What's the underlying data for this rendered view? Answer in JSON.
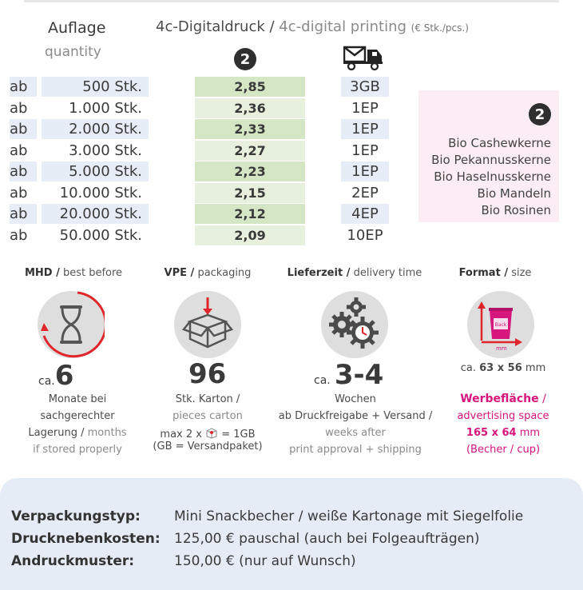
{
  "header": {
    "auflage": "Auflage",
    "quantity": "quantity",
    "title_de": "4c-Digitaldruck /",
    "title_en": "4c-digital printing",
    "title_unit": "(€ Stk./pcs.)",
    "badge": "2",
    "truck_icon": "mail-truck-icon"
  },
  "rows": [
    {
      "ab": "ab",
      "qty": "500 Stk.",
      "price": "2,85",
      "ship": "3GB"
    },
    {
      "ab": "ab",
      "qty": "1.000 Stk.",
      "price": "2,36",
      "ship": "1EP"
    },
    {
      "ab": "ab",
      "qty": "2.000 Stk.",
      "price": "2,33",
      "ship": "1EP"
    },
    {
      "ab": "ab",
      "qty": "3.000 Stk.",
      "price": "2,27",
      "ship": "1EP"
    },
    {
      "ab": "ab",
      "qty": "5.000 Stk.",
      "price": "2,23",
      "ship": "1EP"
    },
    {
      "ab": "ab",
      "qty": "10.000 Stk.",
      "price": "2,15",
      "ship": "2EP"
    },
    {
      "ab": "ab",
      "qty": "20.000 Stk.",
      "price": "2,12",
      "ship": "4EP"
    },
    {
      "ab": "ab",
      "qty": "50.000 Stk.",
      "price": "2,09",
      "ship": "10EP"
    }
  ],
  "side": {
    "badge": "2",
    "items": [
      "Bio Cashewkerne",
      "Bio Pekannusskerne",
      "Bio Haselnusskerne",
      "Bio Mandeln",
      "Bio Rosinen"
    ]
  },
  "mhd": {
    "label_de": "MHD /",
    "label_en": "best before",
    "ca": "ca.",
    "value": "6",
    "line1": "Monate bei",
    "line2": "sachgerechter",
    "line3a": "Lagerung /",
    "line3b": "months",
    "line4": "if stored properly"
  },
  "vpe": {
    "label_de": "VPE /",
    "label_en": "packaging",
    "value": "96",
    "line1": "Stk. Karton /",
    "line2": "pieces carton",
    "line3a": "max 2 x",
    "line3b": "= 1GB",
    "line4": "(GB = Versandpaket)"
  },
  "delivery": {
    "label_de": "Lieferzeit /",
    "label_en": "delivery time",
    "ca": "ca.",
    "value": "3-4",
    "line1": "Wochen",
    "line2": "ab Druckfreigabe + Versand /",
    "line3": "weeks after",
    "line4": "print approval + shipping"
  },
  "format": {
    "label_de": "Format /",
    "label_en": "size",
    "cup_label": "Back",
    "mm": "mm",
    "size_ca": "ca.",
    "size_val": "63 x 56",
    "size_unit": "mm",
    "ad_de": "Werbefläche",
    "ad_sep": "/",
    "ad_en": "advertising space",
    "ad_size": "165 x 64",
    "ad_unit": "mm",
    "ad_note": "(Becher / cup)"
  },
  "bottom": [
    {
      "label": "Verpackungstyp:",
      "value": "Mini Snackbecher / weiße Kartonage mit Siegelfolie"
    },
    {
      "label": "Drucknebenkosten:",
      "value": "125,00 € pauschal (auch bei Folgeaufträgen)"
    },
    {
      "label": "Andruckmuster:",
      "value": "150,00 € (nur auf Wunsch)"
    }
  ],
  "colors": {
    "accent_pink": "#d6157d",
    "price_green": "#d4e6c3",
    "row_blue": "#e7edf7",
    "side_pink": "#fbedf3",
    "bottom_blue": "#e6ecf6"
  }
}
